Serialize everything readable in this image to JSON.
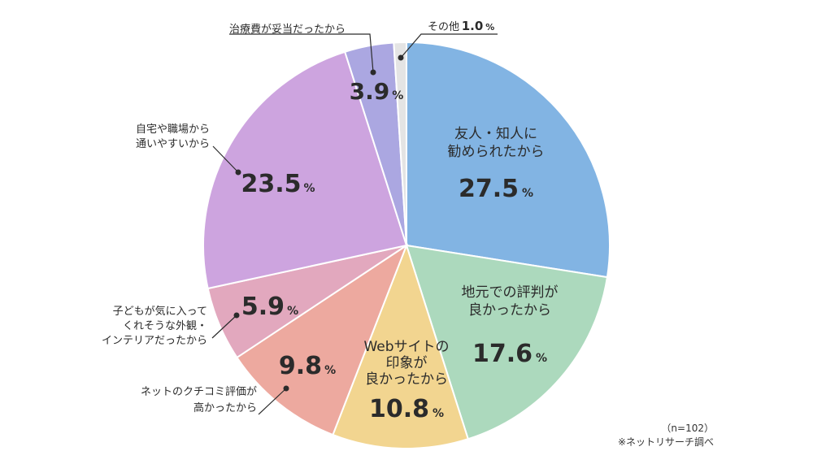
{
  "chart_data": {
    "type": "pie",
    "unit": "%",
    "slices": [
      {
        "label_lines": [
          "友人・知人に",
          "勧められたから"
        ],
        "value": 27.5,
        "color": "#82b4e3"
      },
      {
        "label_lines": [
          "地元での評判が",
          "良かったから"
        ],
        "value": 17.6,
        "color": "#acd9bd"
      },
      {
        "label_lines": [
          "Webサイトの",
          "印象が",
          "良かったから"
        ],
        "value": 10.8,
        "color": "#f2d590"
      },
      {
        "label_lines": [
          "ネットのクチコミ評価が",
          "高かったから"
        ],
        "value": 9.8,
        "color": "#eda99f"
      },
      {
        "label_lines": [
          "子どもが気に入って",
          "くれそうな外観・",
          "インテリアだったから"
        ],
        "value": 5.9,
        "color": "#e2a8be"
      },
      {
        "label_lines": [
          "自宅や職場から",
          "通いやすいから"
        ],
        "value": 23.5,
        "color": "#cda4df"
      },
      {
        "label_lines": [
          "治療費が妥当だったから"
        ],
        "value": 3.9,
        "color": "#aba7e1"
      },
      {
        "label_lines": [
          "その他"
        ],
        "value": 1.0,
        "color": "#e4e4e4"
      }
    ],
    "sample_note": "（n=102）",
    "source_note": "※ネットリサーチ調べ"
  }
}
